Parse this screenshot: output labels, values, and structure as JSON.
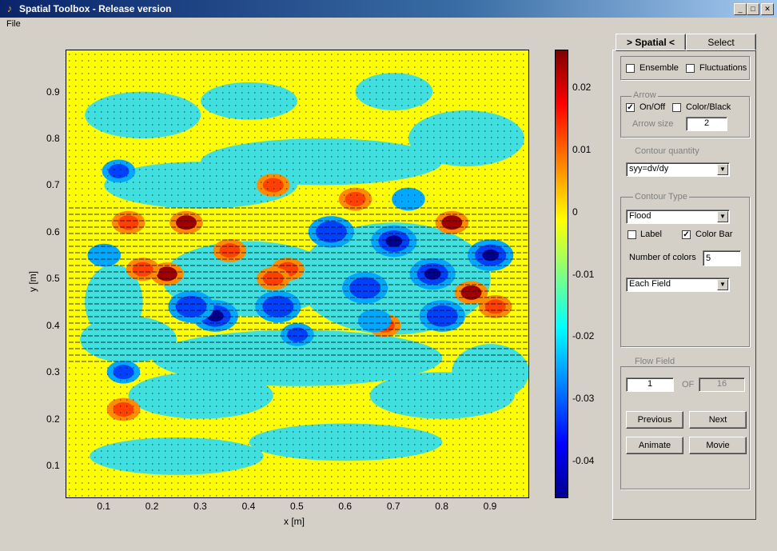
{
  "window": {
    "title": "Spatial Toolbox - Release version",
    "menu": [
      "File"
    ]
  },
  "plot": {
    "x_label": "x [m]",
    "y_label": "y [m]",
    "x_ticks": [
      "0.1",
      "0.2",
      "0.3",
      "0.4",
      "0.5",
      "0.6",
      "0.7",
      "0.8",
      "0.9"
    ],
    "y_ticks": [
      "0.9",
      "0.8",
      "0.7",
      "0.6",
      "0.5",
      "0.4",
      "0.3",
      "0.2",
      "0.1"
    ],
    "colorbar_ticks": [
      "0.02",
      "0.01",
      "0",
      "-0.01",
      "-0.02",
      "-0.03",
      "-0.04"
    ]
  },
  "chart_data": {
    "type": "heatmap",
    "xlabel": "x [m]",
    "ylabel": "y [m]",
    "xlim": [
      0.02,
      0.98
    ],
    "ylim": [
      0.03,
      0.99
    ],
    "colorbar_range": [
      -0.046,
      0.026
    ],
    "quantity": "syy=dv/dy",
    "blobs": [
      {
        "x": 0.27,
        "y": 0.62,
        "v": 0.025
      },
      {
        "x": 0.23,
        "y": 0.51,
        "v": 0.02
      },
      {
        "x": 0.36,
        "y": 0.56,
        "v": 0.018
      },
      {
        "x": 0.33,
        "y": 0.42,
        "v": -0.04
      },
      {
        "x": 0.28,
        "y": 0.44,
        "v": -0.03
      },
      {
        "x": 0.46,
        "y": 0.44,
        "v": -0.03
      },
      {
        "x": 0.48,
        "y": 0.52,
        "v": 0.015
      },
      {
        "x": 0.57,
        "y": 0.6,
        "v": -0.03
      },
      {
        "x": 0.62,
        "y": 0.67,
        "v": 0.018
      },
      {
        "x": 0.7,
        "y": 0.58,
        "v": -0.04
      },
      {
        "x": 0.64,
        "y": 0.48,
        "v": -0.03
      },
      {
        "x": 0.68,
        "y": 0.4,
        "v": 0.015
      },
      {
        "x": 0.78,
        "y": 0.51,
        "v": -0.035
      },
      {
        "x": 0.82,
        "y": 0.62,
        "v": 0.022
      },
      {
        "x": 0.86,
        "y": 0.47,
        "v": 0.02
      },
      {
        "x": 0.9,
        "y": 0.55,
        "v": -0.035
      },
      {
        "x": 0.91,
        "y": 0.44,
        "v": 0.018
      },
      {
        "x": 0.8,
        "y": 0.42,
        "v": -0.03
      },
      {
        "x": 0.5,
        "y": 0.38,
        "v": -0.025
      },
      {
        "x": 0.14,
        "y": 0.3,
        "v": -0.025
      },
      {
        "x": 0.14,
        "y": 0.22,
        "v": 0.015
      },
      {
        "x": 0.1,
        "y": 0.55,
        "v": -0.02
      },
      {
        "x": 0.15,
        "y": 0.62,
        "v": 0.012
      },
      {
        "x": 0.18,
        "y": 0.52,
        "v": 0.012
      },
      {
        "x": 0.45,
        "y": 0.5,
        "v": 0.01
      },
      {
        "x": 0.73,
        "y": 0.67,
        "v": -0.02
      },
      {
        "x": 0.66,
        "y": 0.41,
        "v": -0.02
      },
      {
        "x": 0.13,
        "y": 0.73,
        "v": -0.025
      },
      {
        "x": 0.45,
        "y": 0.7,
        "v": 0.012
      }
    ]
  },
  "panel": {
    "tabs": {
      "spatial": "> Spatial <",
      "select": "Select"
    },
    "ensemble": {
      "label": "Ensemble",
      "checked": false
    },
    "fluctuations": {
      "label": "Fluctuations",
      "checked": false
    },
    "arrow": {
      "legend": "Arrow",
      "onoff": {
        "label": "On/Off",
        "checked": true
      },
      "colorblack": {
        "label": "Color/Black",
        "checked": false
      },
      "size_label": "Arrow size",
      "size_value": "2"
    },
    "contour_quantity": {
      "label": "Contour quantity",
      "value": "syy=dv/dy"
    },
    "contour_type": {
      "legend": "Contour Type",
      "type_value": "Flood",
      "label_chk": {
        "label": "Label",
        "checked": false
      },
      "colorbar_chk": {
        "label": "Color Bar",
        "checked": true
      },
      "num_colors_label": "Number of colors",
      "num_colors_value": "5",
      "scale_value": "Each Field"
    },
    "flow_field": {
      "legend": "Flow Field",
      "current": "1",
      "of_label": "OF",
      "total": "16",
      "previous": "Previous",
      "next": "Next",
      "animate": "Animate",
      "movie": "Movie"
    }
  },
  "colors": {
    "titlebar": "#0a246a",
    "plot_base": "#ffff00"
  }
}
